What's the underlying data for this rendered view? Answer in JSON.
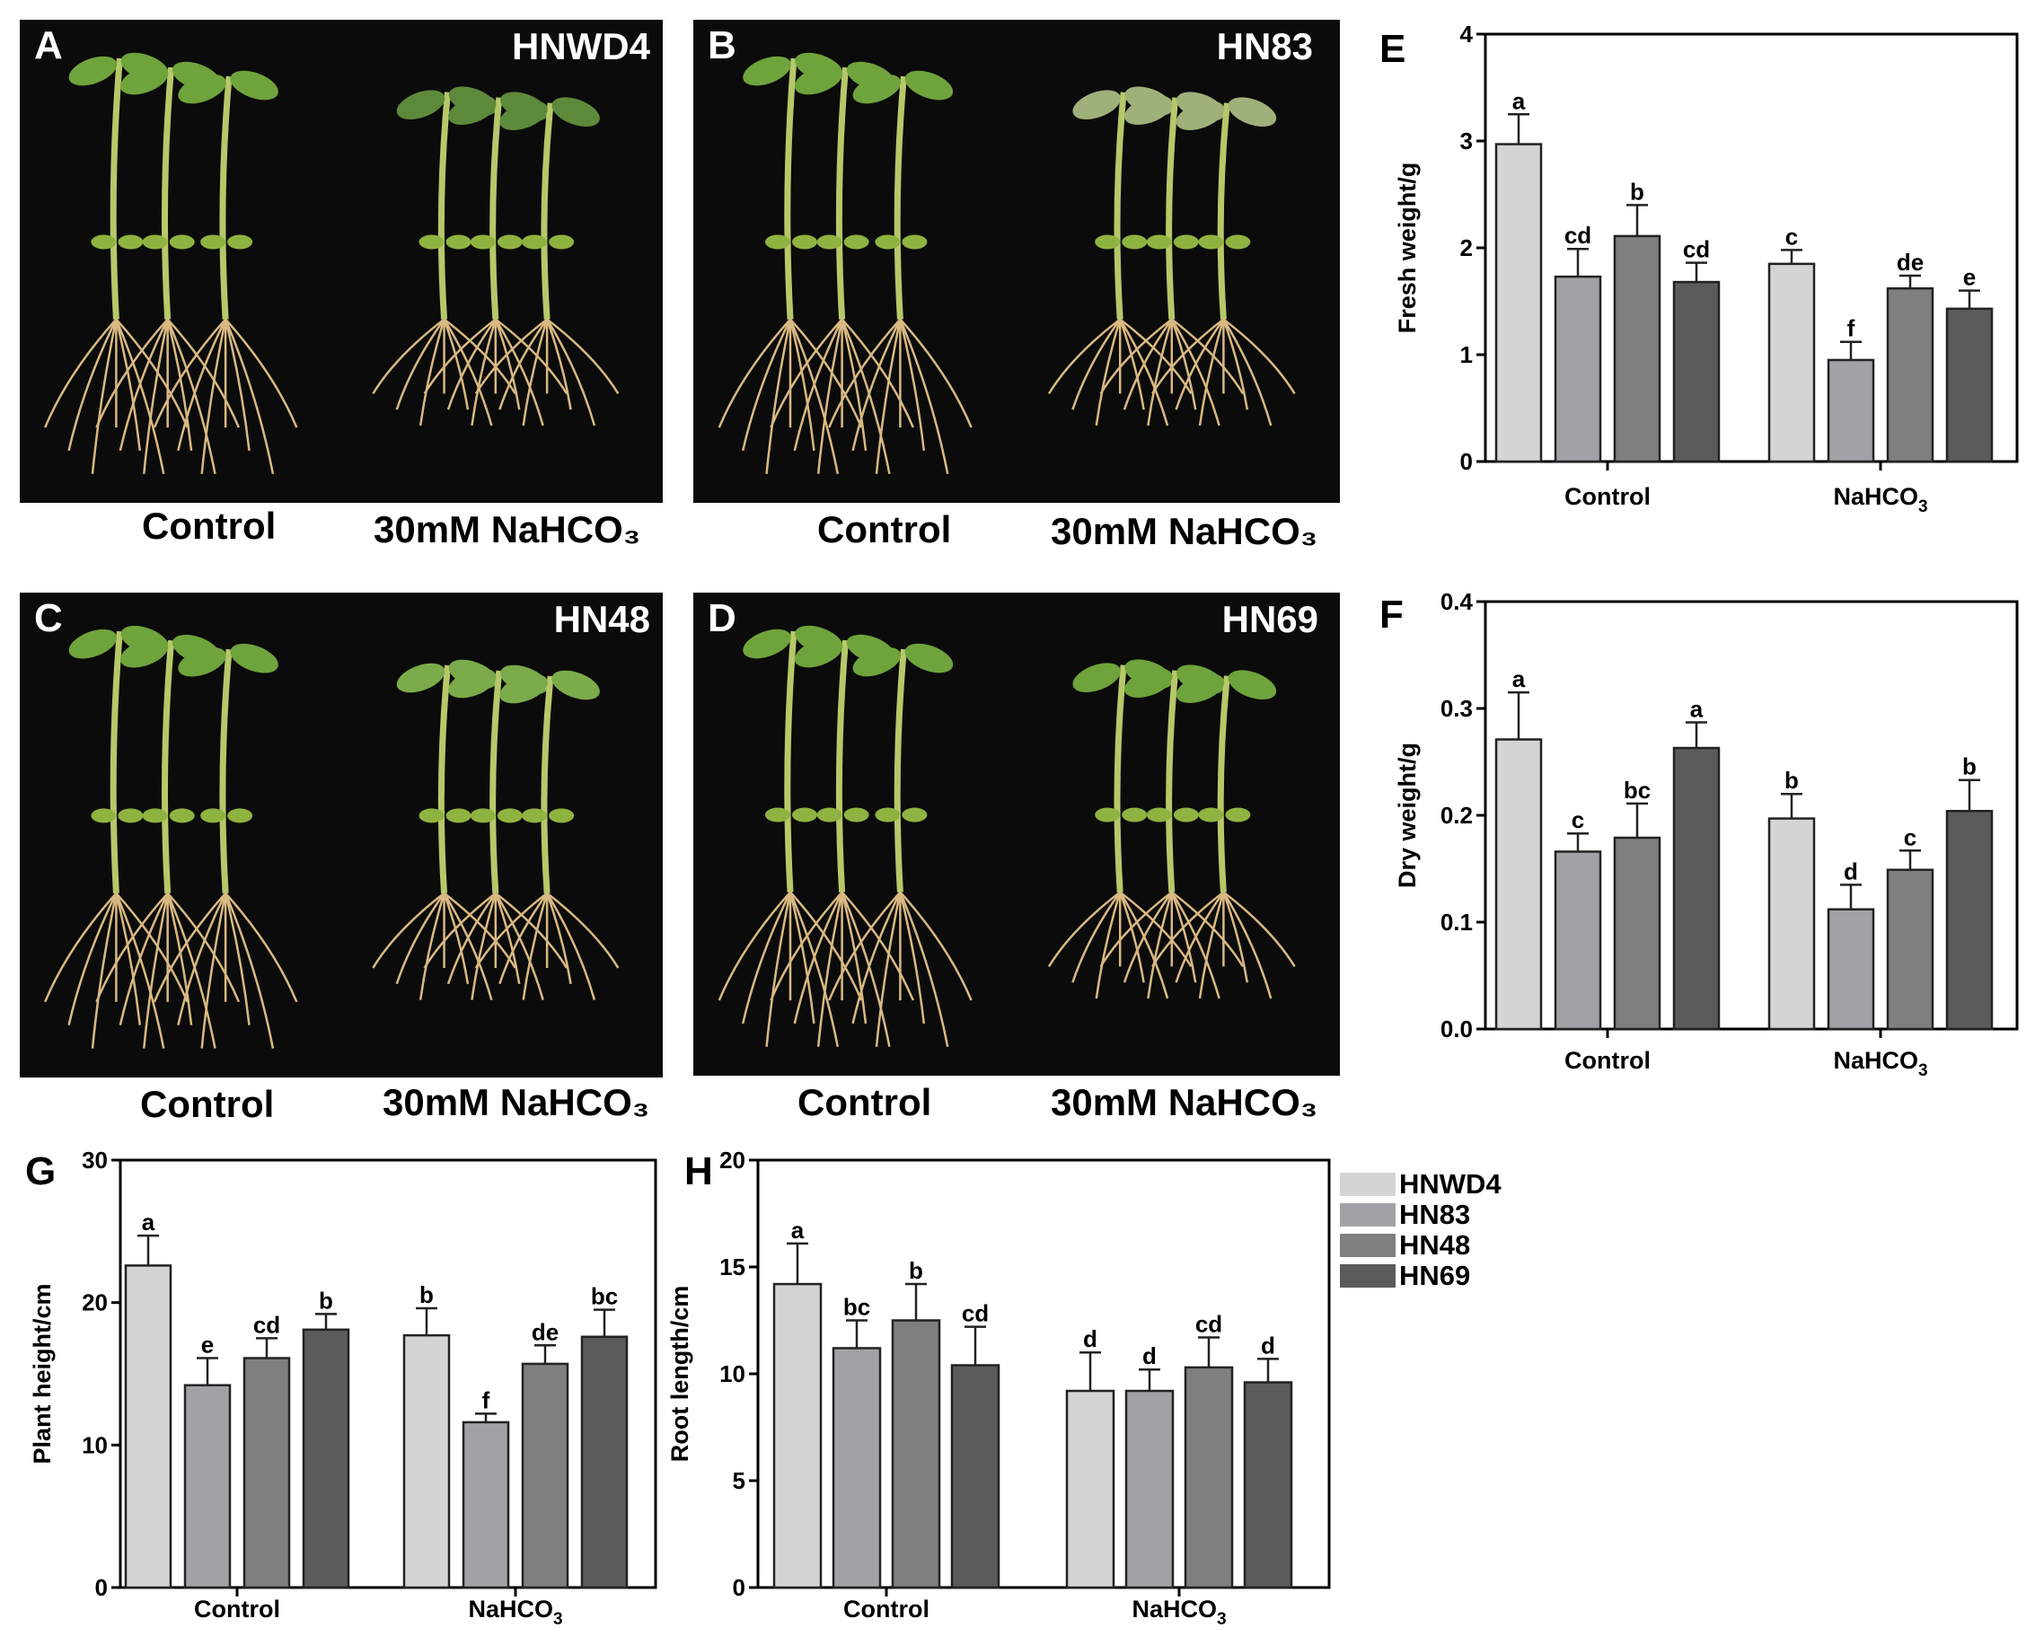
{
  "photos": [
    {
      "letter": "A",
      "variety": "HNWD4",
      "control_label": "Control",
      "treatment_label": "30mM NaHCO₃"
    },
    {
      "letter": "B",
      "variety": "HN83",
      "control_label": "Control",
      "treatment_label": "30mM NaHCO₃"
    },
    {
      "letter": "C",
      "variety": "HN48",
      "control_label": "Control",
      "treatment_label": "30mM NaHCO₃"
    },
    {
      "letter": "D",
      "variety": "HN69",
      "control_label": "Control",
      "treatment_label": "30mM NaHCO₃"
    }
  ],
  "colors": {
    "HNWD4": "#d4d4d4",
    "HN83": "#a2a2a6",
    "HN48": "#7f7f7f",
    "HN69": "#5b5b5b"
  },
  "legend": [
    "HNWD4",
    "HN83",
    "HN48",
    "HN69"
  ],
  "chart_data": [
    {
      "panel": "E",
      "type": "bar",
      "categories": [
        "Control",
        "NaHCO3"
      ],
      "ylabel": "Fresh weight/g",
      "ylim": [
        0,
        4
      ],
      "yticks": [
        0,
        1,
        2,
        3,
        4
      ],
      "series": [
        {
          "name": "HNWD4",
          "values": [
            2.97,
            1.85
          ],
          "errors": [
            0.28,
            0.13
          ],
          "letters": [
            "a",
            "c"
          ]
        },
        {
          "name": "HN83",
          "values": [
            1.73,
            0.95
          ],
          "errors": [
            0.26,
            0.17
          ],
          "letters": [
            "cd",
            "f"
          ]
        },
        {
          "name": "HN48",
          "values": [
            2.11,
            1.62
          ],
          "errors": [
            0.29,
            0.12
          ],
          "letters": [
            "b",
            "de"
          ]
        },
        {
          "name": "HN69",
          "values": [
            1.68,
            1.43
          ],
          "errors": [
            0.18,
            0.17
          ],
          "letters": [
            "cd",
            "e"
          ]
        }
      ]
    },
    {
      "panel": "F",
      "type": "bar",
      "categories": [
        "Control",
        "NaHCO3"
      ],
      "ylabel": "Dry weight/g",
      "ylim": [
        0,
        0.4
      ],
      "yticks": [
        "0.0",
        "0.1",
        "0.2",
        "0.3",
        "0.4"
      ],
      "series": [
        {
          "name": "HNWD4",
          "values": [
            0.271,
            0.197
          ],
          "errors": [
            0.044,
            0.023
          ],
          "letters": [
            "a",
            "b"
          ]
        },
        {
          "name": "HN83",
          "values": [
            0.166,
            0.112
          ],
          "errors": [
            0.017,
            0.023
          ],
          "letters": [
            "c",
            "d"
          ]
        },
        {
          "name": "HN48",
          "values": [
            0.179,
            0.149
          ],
          "errors": [
            0.032,
            0.018
          ],
          "letters": [
            "bc",
            "c"
          ]
        },
        {
          "name": "HN69",
          "values": [
            0.263,
            0.204
          ],
          "errors": [
            0.024,
            0.029
          ],
          "letters": [
            "a",
            "b"
          ]
        }
      ]
    },
    {
      "panel": "G",
      "type": "bar",
      "categories": [
        "Control",
        "NaHCO3"
      ],
      "ylabel": "Plant height/cm",
      "ylim": [
        0,
        30
      ],
      "yticks": [
        0,
        10,
        20,
        30
      ],
      "series": [
        {
          "name": "HNWD4",
          "values": [
            22.6,
            17.7
          ],
          "errors": [
            2.1,
            1.9
          ],
          "letters": [
            "a",
            "b"
          ]
        },
        {
          "name": "HN83",
          "values": [
            14.2,
            11.6
          ],
          "errors": [
            1.9,
            0.6
          ],
          "letters": [
            "e",
            "f"
          ]
        },
        {
          "name": "HN48",
          "values": [
            16.1,
            15.7
          ],
          "errors": [
            1.4,
            1.3
          ],
          "letters": [
            "cd",
            "de"
          ]
        },
        {
          "name": "HN69",
          "values": [
            18.1,
            17.6
          ],
          "errors": [
            1.1,
            1.9
          ],
          "letters": [
            "b",
            "bc"
          ]
        }
      ]
    },
    {
      "panel": "H",
      "type": "bar",
      "categories": [
        "Control",
        "NaHCO3"
      ],
      "ylabel": "Root length/cm",
      "ylim": [
        0,
        20
      ],
      "yticks": [
        0,
        5,
        10,
        15,
        20
      ],
      "series": [
        {
          "name": "HNWD4",
          "values": [
            14.2,
            9.2
          ],
          "errors": [
            1.9,
            1.8
          ],
          "letters": [
            "a",
            "d"
          ]
        },
        {
          "name": "HN83",
          "values": [
            11.2,
            9.2
          ],
          "errors": [
            1.3,
            1.0
          ],
          "letters": [
            "bc",
            "d"
          ]
        },
        {
          "name": "HN48",
          "values": [
            12.5,
            10.3
          ],
          "errors": [
            1.7,
            1.4
          ],
          "letters": [
            "b",
            "cd"
          ]
        },
        {
          "name": "HN69",
          "values": [
            10.4,
            9.6
          ],
          "errors": [
            1.8,
            1.1
          ],
          "letters": [
            "cd",
            "d"
          ]
        }
      ]
    }
  ]
}
